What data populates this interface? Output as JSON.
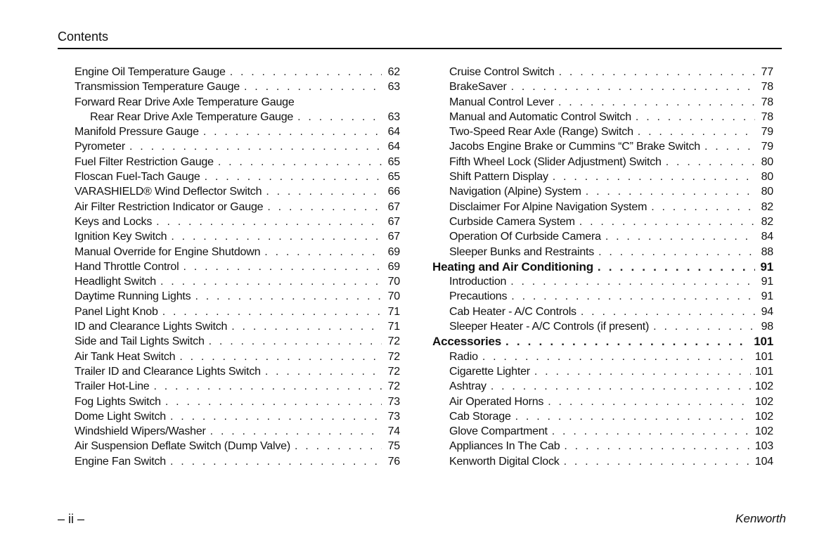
{
  "header": {
    "title": "Contents"
  },
  "footer": {
    "page_label": "– ii –",
    "brand": "Kenworth"
  },
  "left_column": [
    {
      "label": "Engine Oil Temperature Gauge",
      "page": "62"
    },
    {
      "label": "Transmission Temperature Gauge",
      "page": "63"
    },
    {
      "label": "Forward Rear Drive Axle Temperature Gauge",
      "page": ""
    },
    {
      "label": "Rear Rear Drive Axle Temperature Gauge",
      "page": "63",
      "indent": true
    },
    {
      "label": "Manifold Pressure Gauge",
      "page": "64"
    },
    {
      "label": "Pyrometer",
      "page": "64"
    },
    {
      "label": "Fuel Filter Restriction Gauge",
      "page": "65"
    },
    {
      "label": "Floscan Fuel-Tach Gauge",
      "page": "65"
    },
    {
      "label": "VARASHIELD® Wind Deflector Switch",
      "page": "66"
    },
    {
      "label": "Air Filter Restriction Indicator or Gauge",
      "page": "67"
    },
    {
      "label": "Keys and Locks",
      "page": "67"
    },
    {
      "label": "Ignition Key Switch",
      "page": "67"
    },
    {
      "label": "Manual Override for Engine Shutdown",
      "page": "69"
    },
    {
      "label": "Hand Throttle Control",
      "page": "69"
    },
    {
      "label": "Headlight Switch",
      "page": "70"
    },
    {
      "label": "Daytime Running Lights",
      "page": "70"
    },
    {
      "label": "Panel Light Knob",
      "page": "71"
    },
    {
      "label": "ID and Clearance Lights Switch",
      "page": "71"
    },
    {
      "label": "Side and Tail Lights Switch",
      "page": "72"
    },
    {
      "label": "Air Tank Heat Switch",
      "page": "72"
    },
    {
      "label": "Trailer ID and Clearance Lights Switch",
      "page": "72"
    },
    {
      "label": "Trailer Hot-Line",
      "page": "72"
    },
    {
      "label": "Fog Lights Switch",
      "page": "73"
    },
    {
      "label": "Dome Light Switch",
      "page": "73"
    },
    {
      "label": "Windshield Wipers/Washer",
      "page": "74"
    },
    {
      "label": "Air Suspension Deflate Switch (Dump Valve)",
      "page": "75"
    },
    {
      "label": "Engine Fan Switch",
      "page": "76"
    }
  ],
  "right_column": [
    {
      "label": "Cruise Control Switch",
      "page": "77"
    },
    {
      "label": "BrakeSaver",
      "page": "78"
    },
    {
      "label": "Manual Control Lever",
      "page": "78"
    },
    {
      "label": "Manual and Automatic Control Switch",
      "page": "78"
    },
    {
      "label": "Two-Speed Rear Axle (Range) Switch",
      "page": "79"
    },
    {
      "label": "Jacobs Engine Brake or Cummins “C” Brake Switch",
      "page": "79"
    },
    {
      "label": "Fifth Wheel Lock (Slider Adjustment) Switch",
      "page": "80"
    },
    {
      "label": "Shift Pattern Display",
      "page": "80"
    },
    {
      "label": "Navigation (Alpine) System",
      "page": "80"
    },
    {
      "label": "Disclaimer For Alpine Navigation System",
      "page": "82"
    },
    {
      "label": "Curbside Camera System",
      "page": "82"
    },
    {
      "label": "Operation Of Curbside Camera",
      "page": "84"
    },
    {
      "label": "Sleeper Bunks and Restraints",
      "page": "88"
    },
    {
      "label": "Heating and Air Conditioning",
      "page": "91",
      "heading": true
    },
    {
      "label": "Introduction",
      "page": "91"
    },
    {
      "label": "Precautions",
      "page": "91"
    },
    {
      "label": "Cab Heater - A/C Controls",
      "page": "94"
    },
    {
      "label": "Sleeper Heater - A/C Controls (if present)",
      "page": "98"
    },
    {
      "label": "Accessories",
      "page": "101",
      "heading": true
    },
    {
      "label": "Radio",
      "page": "101"
    },
    {
      "label": "Cigarette Lighter",
      "page": "101"
    },
    {
      "label": "Ashtray",
      "page": "102"
    },
    {
      "label": "Air Operated Horns",
      "page": "102"
    },
    {
      "label": "Cab Storage",
      "page": "102"
    },
    {
      "label": "Glove Compartment",
      "page": "102"
    },
    {
      "label": "Appliances In The Cab",
      "page": "103"
    },
    {
      "label": "Kenworth Digital Clock",
      "page": "104"
    }
  ]
}
